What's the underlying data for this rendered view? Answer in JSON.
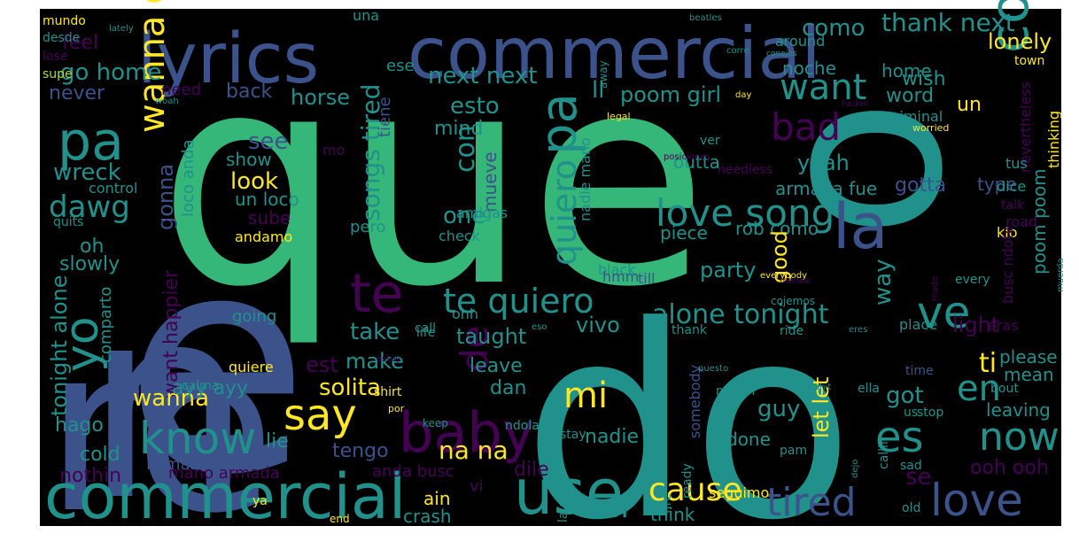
{
  "palette": [
    "#440154",
    "#3b528b",
    "#21918c",
    "#5ec962",
    "#fde725",
    "#2c728e",
    "#27ad81",
    "#472d7b",
    "#aadc32",
    "#35b779"
  ],
  "canvas_color": "#000000",
  "words": [
    {
      "text": "que"
    },
    {
      "text": "do"
    },
    {
      "text": "n"
    },
    {
      "text": "e"
    },
    {
      "text": "re"
    },
    {
      "text": "o"
    },
    {
      "text": "lyrics"
    },
    {
      "text": "commercial"
    },
    {
      "text": "commercial"
    },
    {
      "text": "use"
    },
    {
      "text": "pa"
    },
    {
      "text": "pa"
    },
    {
      "text": "la"
    },
    {
      "text": "con altura"
    },
    {
      "text": "te"
    },
    {
      "text": "ve"
    },
    {
      "text": "love song"
    },
    {
      "text": "want"
    },
    {
      "text": "bad"
    },
    {
      "text": "yo"
    },
    {
      "text": "wanna go"
    },
    {
      "text": "dawg"
    },
    {
      "text": "say"
    },
    {
      "text": "know"
    },
    {
      "text": "baby"
    },
    {
      "text": "te quiero"
    },
    {
      "text": "quiero"
    },
    {
      "text": "de"
    },
    {
      "text": "mi"
    },
    {
      "text": "es"
    },
    {
      "text": "now"
    },
    {
      "text": "en"
    },
    {
      "text": "tired"
    },
    {
      "text": "love"
    },
    {
      "text": "cause"
    },
    {
      "text": "el"
    },
    {
      "text": "na na"
    },
    {
      "text": "alone tonight"
    },
    {
      "text": "tonight alone"
    },
    {
      "text": "songs tired"
    },
    {
      "text": "thank next"
    },
    {
      "text": "next next"
    },
    {
      "text": "go home"
    },
    {
      "text": "como"
    },
    {
      "text": "lonely"
    },
    {
      "text": "poom girl"
    },
    {
      "text": "horse"
    },
    {
      "text": "feel"
    },
    {
      "text": "never"
    },
    {
      "text": "back"
    },
    {
      "text": "home"
    },
    {
      "text": "noche"
    },
    {
      "text": "word"
    },
    {
      "text": "wish"
    },
    {
      "text": "un"
    },
    {
      "text": "esto"
    },
    {
      "text": "ll"
    },
    {
      "text": "mind"
    },
    {
      "text": "see"
    },
    {
      "text": "show"
    },
    {
      "text": "look"
    },
    {
      "text": "con"
    },
    {
      "text": "wreck"
    },
    {
      "text": "gonna"
    },
    {
      "text": "yeah"
    },
    {
      "text": "gotta"
    },
    {
      "text": "type"
    },
    {
      "text": "armada fue"
    },
    {
      "text": "outta"
    },
    {
      "text": "mueve"
    },
    {
      "text": "one"
    },
    {
      "text": "oh"
    },
    {
      "text": "slowly"
    },
    {
      "text": "un loco"
    },
    {
      "text": "sube"
    },
    {
      "text": "andamo"
    },
    {
      "text": "pero"
    },
    {
      "text": "check"
    },
    {
      "text": "piece"
    },
    {
      "text": "rob como"
    },
    {
      "text": "party"
    },
    {
      "text": "good"
    },
    {
      "text": "way"
    },
    {
      "text": "poom poom"
    },
    {
      "text": "light"
    },
    {
      "text": "ti"
    },
    {
      "text": "take"
    },
    {
      "text": "taught"
    },
    {
      "text": "vivo"
    },
    {
      "text": "want happier"
    },
    {
      "text": "make"
    },
    {
      "text": "leave"
    },
    {
      "text": "est"
    },
    {
      "text": "solita"
    },
    {
      "text": "dan"
    },
    {
      "text": "shirt"
    },
    {
      "text": "got"
    },
    {
      "text": "let let"
    },
    {
      "text": "guy"
    },
    {
      "text": "wanna"
    },
    {
      "text": "ayy ayy"
    },
    {
      "text": "hago"
    },
    {
      "text": "cold"
    },
    {
      "text": "lie"
    },
    {
      "text": "tengo"
    },
    {
      "text": "nadie"
    },
    {
      "text": "done"
    },
    {
      "text": "leaving"
    },
    {
      "text": "mean"
    },
    {
      "text": "please"
    },
    {
      "text": "ooh ooh"
    },
    {
      "text": "se"
    },
    {
      "text": "nothin"
    },
    {
      "text": "mano armada"
    },
    {
      "text": "anda busc"
    },
    {
      "text": "dile"
    },
    {
      "text": "vi"
    },
    {
      "text": "ain"
    },
    {
      "text": "crash"
    },
    {
      "text": "think"
    },
    {
      "text": "seguimo"
    },
    {
      "text": "llamas"
    },
    {
      "text": "comparto"
    },
    {
      "text": "quiere"
    },
    {
      "text": "going"
    },
    {
      "text": "calma"
    },
    {
      "text": "somebody"
    },
    {
      "text": "need"
    },
    {
      "text": "control"
    },
    {
      "text": "quits"
    },
    {
      "text": "mundo"
    },
    {
      "text": "desde"
    },
    {
      "text": "lose"
    },
    {
      "text": "supe"
    },
    {
      "text": "una"
    },
    {
      "text": "ese"
    },
    {
      "text": "around"
    },
    {
      "text": "town"
    },
    {
      "text": "beatles"
    },
    {
      "text": "corre"
    },
    {
      "text": "conejos"
    },
    {
      "text": "away"
    },
    {
      "text": "lately"
    },
    {
      "text": "woah"
    },
    {
      "text": "mo"
    },
    {
      "text": "tiene"
    },
    {
      "text": "amigas"
    },
    {
      "text": "nadie mano"
    },
    {
      "text": "loco anda"
    },
    {
      "text": "ver"
    },
    {
      "text": "legal"
    },
    {
      "text": "posiciones"
    },
    {
      "text": "needless"
    },
    {
      "text": "criminal"
    },
    {
      "text": "worried"
    },
    {
      "text": "fuckin"
    },
    {
      "text": "day"
    },
    {
      "text": "nevertheless"
    },
    {
      "text": "thinking"
    },
    {
      "text": "tus"
    },
    {
      "text": "dice"
    },
    {
      "text": "talk"
    },
    {
      "text": "road"
    },
    {
      "text": "kio"
    },
    {
      "text": "busc ndote"
    },
    {
      "text": "ohh"
    },
    {
      "text": "life"
    },
    {
      "text": "till"
    },
    {
      "text": "black"
    },
    {
      "text": "hmm"
    },
    {
      "text": "every"
    },
    {
      "text": "everybody"
    },
    {
      "text": "made"
    },
    {
      "text": "cojemos"
    },
    {
      "text": "menea"
    },
    {
      "text": "eras"
    },
    {
      "text": "place"
    },
    {
      "text": "call"
    },
    {
      "text": "eso"
    },
    {
      "text": "thank"
    },
    {
      "text": "ride"
    },
    {
      "text": "eres"
    },
    {
      "text": "muerda"
    },
    {
      "text": "puesto"
    },
    {
      "text": "time"
    },
    {
      "text": "estoy"
    },
    {
      "text": "ella"
    },
    {
      "text": "match"
    },
    {
      "text": "shit"
    },
    {
      "text": "bout"
    },
    {
      "text": "us"
    },
    {
      "text": "stop"
    },
    {
      "text": "keep"
    },
    {
      "text": "ndola"
    },
    {
      "text": "por"
    },
    {
      "text": "stay"
    },
    {
      "text": "ready"
    },
    {
      "text": "callin"
    },
    {
      "text": "pam"
    },
    {
      "text": "sad"
    },
    {
      "text": "dejo"
    },
    {
      "text": "ya"
    },
    {
      "text": "fire"
    },
    {
      "text": "laugh"
    },
    {
      "text": "old"
    },
    {
      "text": "end"
    }
  ]
}
